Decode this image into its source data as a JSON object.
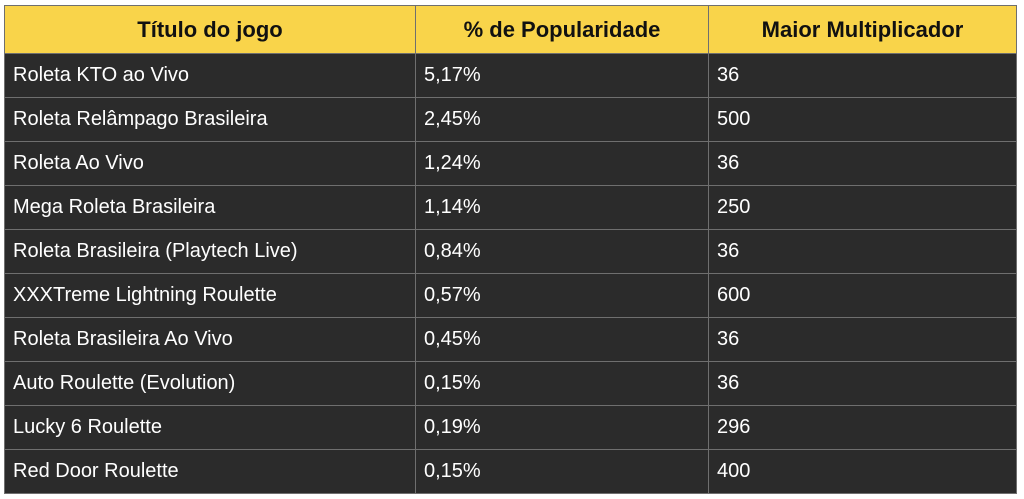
{
  "table": {
    "headers": [
      "Título do jogo",
      "% de Popularidade",
      "Maior Multiplicador"
    ],
    "rows": [
      [
        "Roleta KTO ao Vivo",
        "5,17%",
        "36"
      ],
      [
        "Roleta Relâmpago Brasileira",
        "2,45%",
        "500"
      ],
      [
        "Roleta Ao Vivo",
        "1,24%",
        "36"
      ],
      [
        "Mega Roleta Brasileira",
        "1,14%",
        "250"
      ],
      [
        "Roleta Brasileira (Playtech Live)",
        "0,84%",
        "36"
      ],
      [
        "XXXTreme Lightning Roulette",
        "0,57%",
        "600"
      ],
      [
        "Roleta Brasileira Ao Vivo",
        "0,45%",
        "36"
      ],
      [
        "Auto Roulette (Evolution)",
        "0,15%",
        "36"
      ],
      [
        "Lucky 6 Roulette",
        "0,19%",
        "296"
      ],
      [
        "Red Door Roulette",
        "0,15%",
        "400"
      ]
    ]
  },
  "colors": {
    "header_bg": "#f9d44a",
    "row_bg": "#2b2b2b",
    "border": "#6f6f6f",
    "header_text": "#111111",
    "row_text": "#ffffff"
  }
}
